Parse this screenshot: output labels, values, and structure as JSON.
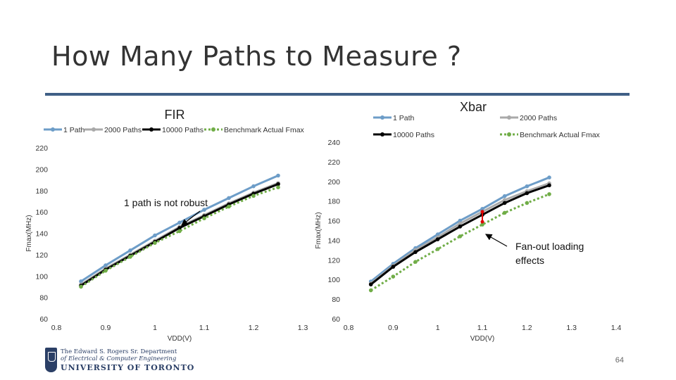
{
  "slide": {
    "title": "How Many Paths to Measure ?",
    "page_number": "64",
    "rule_color": "#3f5f86",
    "logo": {
      "line1": "The Edward S. Rogers Sr. Department",
      "line2": "of Electrical & Computer Engineering",
      "line3": "UNIVERSITY OF TORONTO"
    }
  },
  "chart_data": [
    {
      "type": "line",
      "title": "FIR",
      "xlabel": "VDD(V)",
      "ylabel": "Fmax(MHz)",
      "xlim": [
        0.8,
        1.3
      ],
      "ylim": [
        60,
        220
      ],
      "xticks": [
        "0.8",
        "0.9",
        "1",
        "1.1",
        "1.2",
        "1.3"
      ],
      "yticks": [
        "60",
        "80",
        "100",
        "120",
        "140",
        "160",
        "180",
        "200",
        "220"
      ],
      "grid": false,
      "legend": "top",
      "series": [
        {
          "name": "1 Path",
          "color": "#6d9dc8",
          "marker": "circle",
          "dashed": false,
          "x": [
            0.85,
            0.9,
            0.95,
            1.0,
            1.05,
            1.1,
            1.15,
            1.2,
            1.25
          ],
          "y": [
            95,
            110,
            124,
            138,
            150,
            162,
            173,
            184,
            194
          ]
        },
        {
          "name": "2000 Paths",
          "color": "#a9a9a9",
          "marker": "circle",
          "dashed": false,
          "x": [
            0.85,
            0.9,
            0.95,
            1.0,
            1.05,
            1.1,
            1.15,
            1.2,
            1.25
          ],
          "y": [
            92,
            107,
            120,
            133,
            146,
            157,
            168,
            178,
            187
          ]
        },
        {
          "name": "10000 Paths",
          "color": "#000000",
          "marker": "circle",
          "dashed": false,
          "x": [
            0.85,
            0.9,
            0.95,
            1.0,
            1.05,
            1.1,
            1.15,
            1.2,
            1.25
          ],
          "y": [
            91,
            106,
            119,
            132,
            145,
            156,
            167,
            177,
            186
          ]
        },
        {
          "name": "Benchmark Actual Fmax",
          "color": "#70ad47",
          "marker": "circle",
          "dashed": true,
          "x": [
            0.85,
            0.9,
            0.95,
            1.0,
            1.05,
            1.1,
            1.15,
            1.2,
            1.25
          ],
          "y": [
            90,
            105,
            118,
            131,
            142,
            154,
            165,
            175,
            183
          ]
        }
      ],
      "annotations": [
        {
          "text": "1 path is not robust",
          "x": 1.04,
          "y": 170
        }
      ]
    },
    {
      "type": "line",
      "title": "Xbar",
      "xlabel": "VDD(V)",
      "ylabel": "Fmax(MHz)",
      "xlim": [
        0.8,
        1.4
      ],
      "ylim": [
        60,
        240
      ],
      "xticks": [
        "0.8",
        "0.9",
        "1",
        "1.1",
        "1.2",
        "1.3",
        "1.4"
      ],
      "yticks": [
        "60",
        "80",
        "100",
        "120",
        "140",
        "160",
        "180",
        "200",
        "220",
        "240"
      ],
      "grid": false,
      "legend": "top",
      "series": [
        {
          "name": "1 Path",
          "color": "#6d9dc8",
          "marker": "circle",
          "dashed": false,
          "x": [
            0.85,
            0.9,
            0.95,
            1.0,
            1.05,
            1.1,
            1.15,
            1.2,
            1.25
          ],
          "y": [
            98,
            116,
            132,
            146,
            160,
            172,
            185,
            195,
            204
          ]
        },
        {
          "name": "2000 Paths",
          "color": "#a9a9a9",
          "marker": "circle",
          "dashed": false,
          "x": [
            0.85,
            0.9,
            0.95,
            1.0,
            1.05,
            1.1,
            1.15,
            1.2,
            1.25
          ],
          "y": [
            96,
            114,
            130,
            143,
            157,
            169,
            181,
            190,
            198
          ]
        },
        {
          "name": "10000 Paths",
          "color": "#000000",
          "marker": "circle",
          "dashed": false,
          "x": [
            0.85,
            0.9,
            0.95,
            1.0,
            1.05,
            1.1,
            1.15,
            1.2,
            1.25
          ],
          "y": [
            95,
            113,
            128,
            141,
            154,
            166,
            178,
            188,
            196
          ]
        },
        {
          "name": "Benchmark Actual Fmax",
          "color": "#70ad47",
          "marker": "circle",
          "dashed": true,
          "x": [
            0.85,
            0.9,
            0.95,
            1.0,
            1.05,
            1.1,
            1.15,
            1.2,
            1.25
          ],
          "y": [
            89,
            103,
            118,
            131,
            144,
            156,
            168,
            178,
            187
          ]
        }
      ],
      "annotations": [
        {
          "text": "Fan-out loading effects",
          "x": 1.07,
          "y": 158
        }
      ]
    }
  ]
}
